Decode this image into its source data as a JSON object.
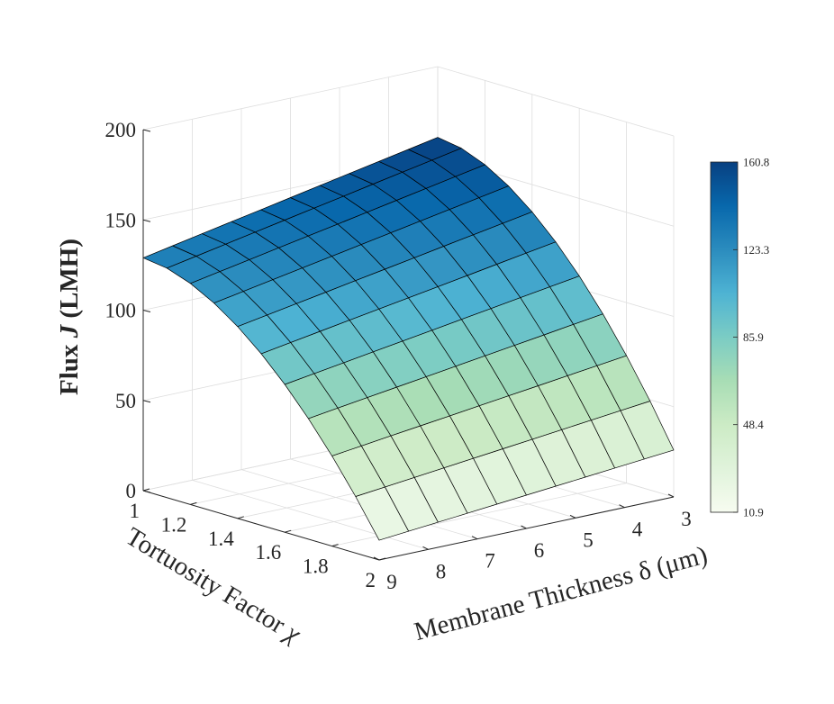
{
  "chart_data": {
    "type": "surface",
    "x_axis": {
      "label_main": "Membrane Thickness ",
      "label_symbol": "δ",
      "label_unit": " (μm)",
      "range": [
        3,
        9
      ],
      "ticks": [
        "3",
        "4",
        "5",
        "6",
        "7",
        "8",
        "9"
      ]
    },
    "y_axis": {
      "label_main": "Tortuosity Factor ",
      "label_symbol": "χ",
      "range": [
        1,
        2
      ],
      "ticks": [
        "1",
        "1.2",
        "1.4",
        "1.6",
        "1.8",
        "2"
      ]
    },
    "z_axis": {
      "label_main": "Flux  ",
      "label_symbol": "J",
      "label_unit": " (LMH)",
      "range": [
        0,
        200
      ],
      "ticks": [
        "0",
        "50",
        "100",
        "150",
        "200"
      ]
    },
    "grid": true,
    "colorbar": {
      "range": [
        10.9,
        160.8
      ],
      "ticks": [
        "10.9",
        "48.4",
        "85.9",
        "123.3",
        "160.8"
      ],
      "colors": [
        "#f7fcf0",
        "#e0f3db",
        "#ccebc5",
        "#a8ddb5",
        "#7bccc4",
        "#4eb3d3",
        "#2b8cbe",
        "#0868ac",
        "#084081"
      ],
      "placement": "right"
    },
    "surface": {
      "thickness_values": [
        3,
        3.6,
        4.2,
        4.8,
        5.4,
        6,
        6.6,
        7.2,
        7.8,
        8.4,
        9
      ],
      "tortuosity_values": [
        1,
        1.1,
        1.2,
        1.3,
        1.4,
        1.5,
        1.6,
        1.7,
        1.8,
        1.9,
        2
      ],
      "flux_min": 10.9,
      "flux_max": 160.8,
      "flux_at_corners": {
        "thickness_3_tortuosity_1": 160.8,
        "thickness_9_tortuosity_1": 129,
        "thickness_3_tortuosity_2": 26,
        "thickness_9_tortuosity_2": 10.9
      }
    }
  }
}
